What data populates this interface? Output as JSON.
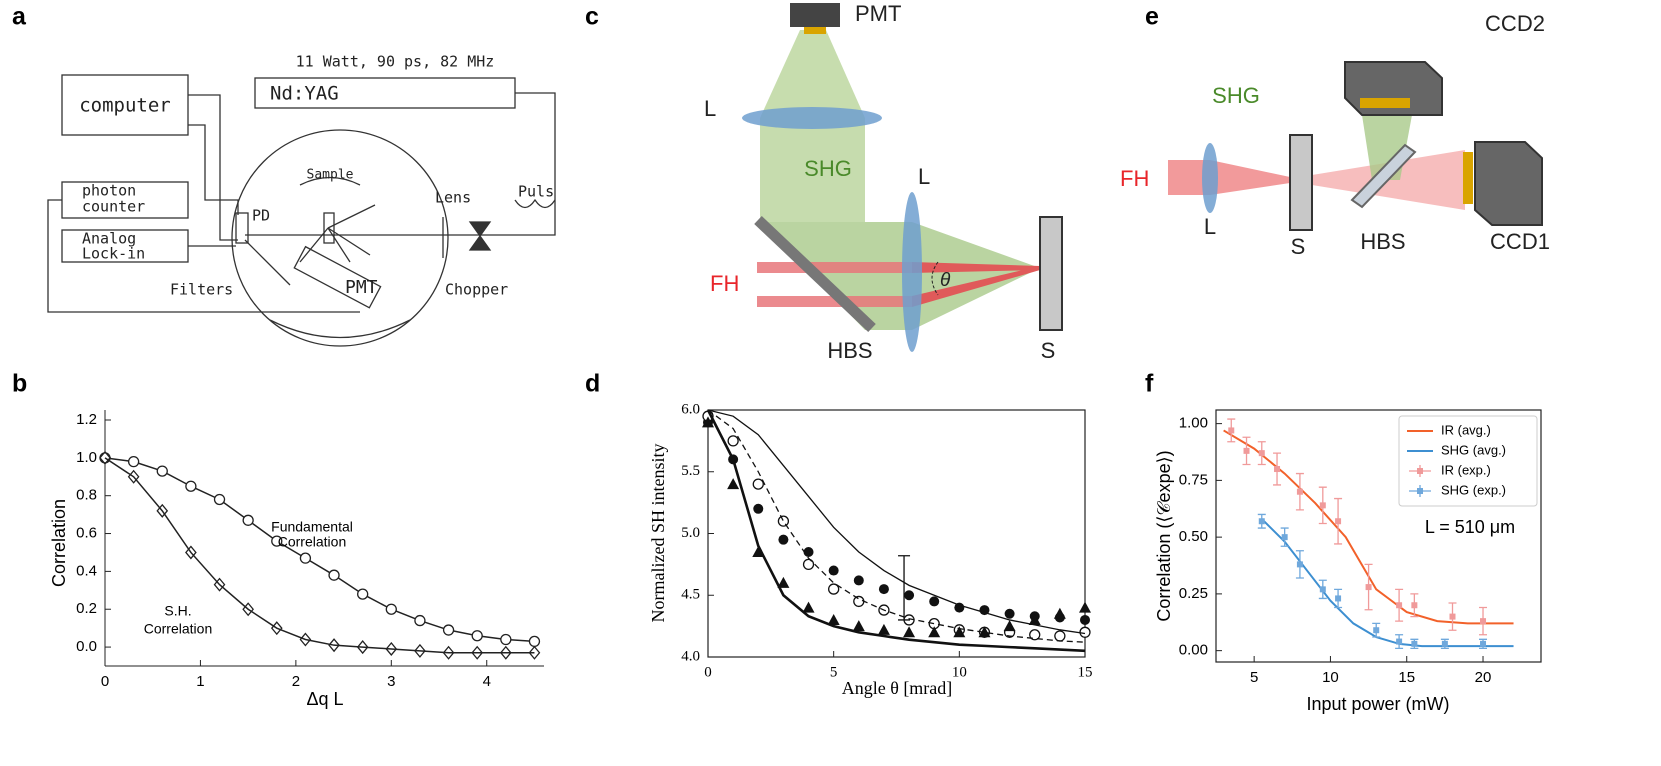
{
  "panel_labels": [
    "a",
    "b",
    "c",
    "d",
    "e",
    "f"
  ],
  "diagrams": {
    "a": {
      "laser_spec": "11 Watt, 90 ps, 82 MHz",
      "laser": "Nd:YAG",
      "computer": "computer",
      "photon_counter": [
        "photon",
        "counter"
      ],
      "lock_in": [
        "Analog",
        "Lock-in"
      ],
      "sample": "Sample",
      "pd": "PD",
      "lens": "Lens",
      "puls": "Puls",
      "filters": "Filters",
      "pmt": "PMT",
      "chopper": "Chopper"
    },
    "c": {
      "pmt": "PMT",
      "lens_top": "L",
      "shg": "SHG",
      "lens_right": "L",
      "fh": "FH",
      "theta": "θ",
      "hbs": "HBS",
      "sample": "S"
    },
    "e": {
      "ccd2": "CCD2",
      "shg": "SHG",
      "fh": "FH",
      "lens": "L",
      "sample": "S",
      "hbs": "HBS",
      "ccd1": "CCD1"
    }
  },
  "chart_data": [
    {
      "type": "scatter",
      "xlabel": "Δq L",
      "ylabel": "Correlation",
      "xlim": [
        0,
        4.6
      ],
      "ylim": [
        -0.1,
        1.2
      ],
      "xticks": [
        0,
        1,
        2,
        3,
        4
      ],
      "yticks": [
        {
          "value": 0,
          "label": "0.0"
        },
        0.2,
        0.4,
        0.6,
        0.8,
        {
          "value": 1,
          "label": "1.0"
        },
        1.2
      ],
      "annotations": [
        [
          "Fundamental",
          "Correlation"
        ],
        [
          "S.H.",
          "Correlation"
        ]
      ],
      "series": [
        {
          "color": "#222222",
          "marker": "open-circle",
          "line": "solid",
          "linewidth": 1.5,
          "x": [
            0,
            0.3,
            0.6,
            0.9,
            1.2,
            1.5,
            1.8,
            2.1,
            2.4,
            2.7,
            3.0,
            3.3,
            3.6,
            3.9,
            4.2,
            4.5
          ],
          "values": [
            1.0,
            0.98,
            0.93,
            0.85,
            0.78,
            0.67,
            0.56,
            0.47,
            0.38,
            0.28,
            0.2,
            0.14,
            0.09,
            0.06,
            0.04,
            0.03
          ]
        },
        {
          "color": "#222222",
          "marker": "diamond",
          "line": "solid",
          "linewidth": 1.5,
          "x": [
            0,
            0.3,
            0.6,
            0.9,
            1.2,
            1.5,
            1.8,
            2.1,
            2.4,
            2.7,
            3.0,
            3.3,
            3.6,
            3.9,
            4.2,
            4.5
          ],
          "values": [
            1.0,
            0.9,
            0.72,
            0.5,
            0.33,
            0.2,
            0.1,
            0.04,
            0.01,
            0.0,
            -0.01,
            -0.02,
            -0.03,
            -0.03,
            -0.03,
            -0.03
          ]
        }
      ]
    },
    {
      "type": "scatter",
      "xlabel": "Angle θ [mrad]",
      "ylabel": "Normalized SH intensity",
      "xlim": [
        0,
        15
      ],
      "ylim": [
        4,
        6
      ],
      "xticks": [
        0,
        5,
        10,
        15
      ],
      "yticks": [
        {
          "value": 4,
          "label": "4.0"
        },
        4.5,
        {
          "value": 5,
          "label": "5.0"
        },
        5.5,
        {
          "value": 6,
          "label": "6.0"
        }
      ],
      "series": [
        {
          "color": "#111111",
          "marker": "circle",
          "x": [
            0,
            1,
            2,
            3,
            4,
            5,
            6,
            7,
            8,
            9,
            10,
            11,
            12,
            13,
            14,
            15
          ],
          "values": [
            5.9,
            5.6,
            5.2,
            4.95,
            4.85,
            4.7,
            4.62,
            4.55,
            4.5,
            4.45,
            4.4,
            4.38,
            4.35,
            4.33,
            4.32,
            4.3
          ]
        },
        {
          "color": "#111111",
          "marker": "open-circle",
          "x": [
            0,
            1,
            2,
            3,
            4,
            5,
            6,
            7,
            8,
            9,
            10,
            11,
            12,
            13,
            14,
            15
          ],
          "values": [
            5.95,
            5.75,
            5.4,
            5.1,
            4.75,
            4.55,
            4.45,
            4.38,
            4.3,
            4.27,
            4.22,
            4.2,
            4.2,
            4.18,
            4.17,
            4.2
          ]
        },
        {
          "color": "#111111",
          "marker": "triangle",
          "x": [
            0,
            1,
            2,
            3,
            4,
            5,
            6,
            7,
            8,
            9,
            10,
            11,
            12,
            13,
            14,
            15
          ],
          "values": [
            5.9,
            5.4,
            4.85,
            4.6,
            4.4,
            4.3,
            4.25,
            4.22,
            4.2,
            4.2,
            4.2,
            4.2,
            4.25,
            4.3,
            4.35,
            4.4
          ]
        },
        {
          "color": "#111111",
          "line": "solid",
          "linewidth": 1.3,
          "x": [
            0,
            1,
            2,
            3,
            4,
            5,
            6,
            7,
            8,
            9,
            10,
            11,
            12,
            13,
            14,
            15
          ],
          "values": [
            6.0,
            5.95,
            5.8,
            5.55,
            5.3,
            5.05,
            4.85,
            4.7,
            4.58,
            4.5,
            4.42,
            4.36,
            4.3,
            4.26,
            4.22,
            4.19
          ]
        },
        {
          "color": "#111111",
          "line": "dashed",
          "linewidth": 1.3,
          "x": [
            0,
            1,
            2,
            3,
            4,
            5,
            6,
            7,
            8,
            9,
            10,
            11,
            12,
            13,
            14,
            15
          ],
          "values": [
            6.0,
            5.85,
            5.5,
            5.1,
            4.8,
            4.6,
            4.47,
            4.38,
            4.31,
            4.27,
            4.23,
            4.2,
            4.17,
            4.15,
            4.13,
            4.12
          ]
        },
        {
          "color": "#111111",
          "line": "solid",
          "linewidth": 2.6,
          "x": [
            0,
            1,
            2,
            3,
            4,
            5,
            6,
            7,
            8,
            9,
            10,
            11,
            12,
            13,
            14,
            15
          ],
          "values": [
            6.0,
            5.6,
            4.9,
            4.5,
            4.33,
            4.25,
            4.2,
            4.17,
            4.14,
            4.12,
            4.1,
            4.09,
            4.08,
            4.07,
            4.06,
            4.05
          ]
        }
      ],
      "errorbars": [
        {
          "x": 7.8,
          "value": 4.56,
          "error": 0.26
        }
      ]
    },
    {
      "type": "scatter",
      "xlabel": "Input power (mW)",
      "ylabel": "Correlation (⟨𝒞expe⟩)",
      "xlim": [
        2.5,
        23.8
      ],
      "ylim": [
        -0.05,
        1.06
      ],
      "xticks": [
        5,
        10,
        15,
        20
      ],
      "yticks": [
        {
          "value": 0,
          "label": "0.00"
        },
        0.25,
        {
          "value": 0.5,
          "label": "0.50"
        },
        0.75,
        {
          "value": 1,
          "label": "1.00"
        }
      ],
      "legend": "upper right",
      "annotations": [
        [
          "L = 510 μm"
        ]
      ],
      "series": [
        {
          "name": "IR (avg.)",
          "color": "#f2612a",
          "line": "solid",
          "linewidth": 2,
          "x": [
            3,
            5,
            7,
            9,
            11,
            13,
            15,
            17,
            19,
            21,
            22
          ],
          "values": [
            0.97,
            0.89,
            0.78,
            0.65,
            0.5,
            0.27,
            0.17,
            0.13,
            0.12,
            0.12,
            0.12
          ]
        },
        {
          "name": "SHG (avg.)",
          "color": "#3d8fd1",
          "line": "solid",
          "linewidth": 2,
          "x": [
            5.5,
            7,
            8.5,
            10,
            11.5,
            13,
            14.5,
            16,
            18,
            20,
            22
          ],
          "values": [
            0.58,
            0.48,
            0.35,
            0.22,
            0.12,
            0.06,
            0.03,
            0.02,
            0.02,
            0.02,
            0.02
          ]
        },
        {
          "name": "IR (exp.)",
          "color": "#f09a9a",
          "marker": "square",
          "x": [
            3.5,
            4.5,
            5.5,
            6.5,
            8,
            9.5,
            10.5,
            12.5,
            14.5,
            15.5,
            18,
            20
          ],
          "values": [
            0.97,
            0.88,
            0.87,
            0.8,
            0.7,
            0.64,
            0.57,
            0.28,
            0.2,
            0.2,
            0.15,
            0.13
          ],
          "yerr": [
            0.05,
            0.06,
            0.05,
            0.07,
            0.08,
            0.08,
            0.1,
            0.1,
            0.07,
            0.05,
            0.06,
            0.06
          ]
        },
        {
          "name": "SHG (exp.)",
          "color": "#6fa8dc",
          "marker": "square",
          "x": [
            5.5,
            7,
            8,
            9.5,
            10.5,
            13,
            14.5,
            15.5,
            17.5,
            20
          ],
          "values": [
            0.57,
            0.5,
            0.38,
            0.27,
            0.23,
            0.09,
            0.04,
            0.03,
            0.03,
            0.03
          ],
          "yerr": [
            0.03,
            0.04,
            0.06,
            0.04,
            0.04,
            0.03,
            0.03,
            0.02,
            0.02,
            0.02
          ]
        }
      ]
    }
  ]
}
